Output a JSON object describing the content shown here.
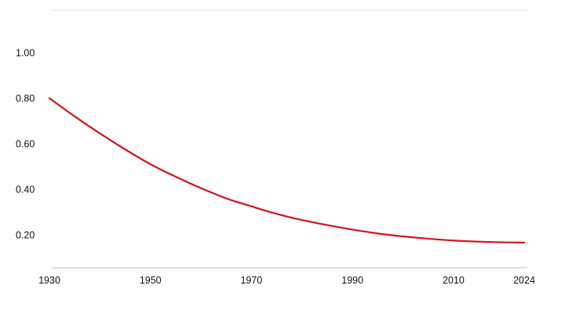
{
  "chart_data": {
    "type": "line",
    "title": "",
    "xlabel": "",
    "ylabel": "",
    "xlim": [
      1930,
      2024
    ],
    "ylim": [
      0.05,
      1.2
    ],
    "x_ticks": [
      1930,
      1950,
      1970,
      1990,
      2010,
      2024
    ],
    "x_tick_labels": [
      "1930",
      "1950",
      "1970",
      "1990",
      "2010",
      "2024"
    ],
    "y_ticks": [
      0.2,
      0.4,
      0.6,
      0.8,
      1.0
    ],
    "y_tick_labels": [
      "0.20",
      "0.40",
      "0.60",
      "0.80",
      "1.00"
    ],
    "grid": false,
    "legend": "none",
    "series": [
      {
        "color": "#d0141c",
        "x": [
          1930,
          1935,
          1940,
          1945,
          1950,
          1955,
          1960,
          1965,
          1970,
          1975,
          1980,
          1985,
          1990,
          1995,
          2000,
          2005,
          2010,
          2015,
          2020,
          2024
        ],
        "y": [
          0.8,
          0.72,
          0.645,
          0.575,
          0.51,
          0.455,
          0.405,
          0.36,
          0.325,
          0.292,
          0.265,
          0.243,
          0.223,
          0.206,
          0.193,
          0.183,
          0.175,
          0.17,
          0.167,
          0.166
        ]
      }
    ]
  },
  "colors": {
    "line": "#d0141c",
    "axis": "#bfbfbf",
    "top_rule": "#e6e6e6",
    "text": "#111111"
  }
}
